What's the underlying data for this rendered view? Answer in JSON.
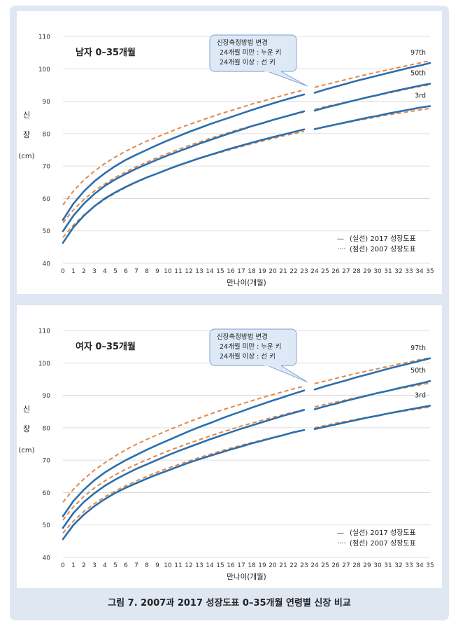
{
  "figure": {
    "caption": "그림 7. 2007과 2017 성장도표 0–35개월 연령별 신장 비교"
  },
  "chart_data": [
    {
      "type": "line",
      "title": "남자 0–35개월",
      "xlabel": "만나이(개월)",
      "ylabel_chars": [
        "신",
        "장"
      ],
      "ylabel_unit": "(cm)",
      "xlim": [
        0,
        35
      ],
      "ylim": [
        40,
        110
      ],
      "yticks": [
        40,
        50,
        60,
        70,
        80,
        90,
        100,
        110
      ],
      "x": [
        0,
        1,
        2,
        3,
        4,
        5,
        6,
        7,
        8,
        9,
        10,
        11,
        12,
        13,
        14,
        15,
        16,
        17,
        18,
        19,
        20,
        21,
        22,
        23,
        24,
        25,
        26,
        27,
        28,
        29,
        30,
        31,
        32,
        33,
        34,
        35
      ],
      "gap_between": [
        23,
        24
      ],
      "callout": [
        "신장측정방법 변경",
        "24개월 미만 : 누운 키",
        "24개월 이상 : 선 키"
      ],
      "percentile_labels": [
        "97th",
        "50th",
        "3rd"
      ],
      "legend": [
        {
          "symbol": "—",
          "text": "(실선) 2017 성장도표"
        },
        {
          "symbol": "····",
          "text": "(점선) 2007 성장도표"
        }
      ],
      "series": [
        {
          "name": "97th",
          "year": "2017",
          "style": "solid",
          "color": "#2a6fae",
          "values": [
            53.4,
            58.4,
            62.2,
            65.3,
            67.8,
            70.0,
            71.9,
            73.5,
            75.0,
            76.5,
            77.9,
            79.2,
            80.5,
            81.7,
            82.9,
            84.0,
            85.1,
            86.2,
            87.3,
            88.3,
            89.3,
            90.3,
            91.2,
            92.1,
            92.6,
            93.6,
            94.5,
            95.4,
            96.3,
            97.1,
            97.9,
            98.7,
            99.5,
            100.3,
            101.0,
            101.8
          ]
        },
        {
          "name": "50th",
          "year": "2017",
          "style": "solid",
          "color": "#2a6fae",
          "values": [
            49.9,
            54.7,
            58.4,
            61.4,
            63.9,
            65.9,
            67.6,
            69.2,
            70.6,
            72.0,
            73.3,
            74.5,
            75.7,
            76.9,
            78.0,
            79.1,
            80.2,
            81.2,
            82.3,
            83.2,
            84.2,
            85.1,
            86.0,
            86.9,
            87.1,
            88.0,
            88.8,
            89.6,
            90.4,
            91.2,
            91.9,
            92.7,
            93.4,
            94.1,
            94.8,
            95.4
          ]
        },
        {
          "name": "3rd",
          "year": "2017",
          "style": "solid",
          "color": "#2a6fae",
          "values": [
            46.3,
            51.1,
            54.7,
            57.6,
            60.0,
            61.9,
            63.6,
            65.1,
            66.5,
            67.7,
            69.0,
            70.2,
            71.3,
            72.4,
            73.4,
            74.4,
            75.4,
            76.3,
            77.2,
            78.1,
            78.9,
            79.7,
            80.5,
            81.3,
            81.4,
            82.1,
            82.8,
            83.5,
            84.2,
            84.9,
            85.5,
            86.2,
            86.8,
            87.4,
            88.0,
            88.5
          ]
        },
        {
          "name": "97th",
          "year": "2007",
          "style": "dashed",
          "color": "#e0894a",
          "values": [
            58.0,
            62.3,
            65.7,
            68.4,
            70.8,
            72.8,
            74.6,
            76.2,
            77.7,
            79.0,
            80.3,
            81.6,
            82.8,
            83.9,
            85.0,
            86.1,
            87.1,
            88.1,
            89.1,
            90.0,
            90.9,
            91.8,
            92.7,
            93.5,
            94.3,
            95.1,
            95.9,
            96.7,
            97.5,
            98.3,
            99.0,
            99.7,
            100.4,
            101.1,
            101.8,
            102.5
          ]
        },
        {
          "name": "50th",
          "year": "2007",
          "style": "dashed",
          "color": "#e0894a",
          "values": [
            52.5,
            56.5,
            59.7,
            62.3,
            64.5,
            66.5,
            68.2,
            69.8,
            71.2,
            72.6,
            73.9,
            75.1,
            76.3,
            77.4,
            78.5,
            79.5,
            80.5,
            81.5,
            82.4,
            83.3,
            84.2,
            85.1,
            85.9,
            86.7,
            87.5,
            88.3,
            89.0,
            89.7,
            90.4,
            91.1,
            91.8,
            92.5,
            93.2,
            93.9,
            94.5,
            95.1
          ]
        },
        {
          "name": "3rd",
          "year": "2007",
          "style": "dashed",
          "color": "#e0894a",
          "values": [
            48.0,
            51.8,
            54.9,
            57.5,
            59.7,
            61.7,
            63.4,
            65.0,
            66.4,
            67.7,
            68.9,
            70.1,
            71.2,
            72.3,
            73.3,
            74.2,
            75.1,
            76.0,
            76.9,
            77.7,
            78.5,
            79.3,
            80.0,
            80.7,
            81.4,
            82.1,
            82.8,
            83.4,
            84.0,
            84.6,
            85.2,
            85.8,
            86.3,
            86.8,
            87.3,
            87.8
          ]
        }
      ]
    },
    {
      "type": "line",
      "title": "여자 0–35개월",
      "xlabel": "만나이(개월)",
      "ylabel_chars": [
        "신",
        "장"
      ],
      "ylabel_unit": "(cm)",
      "xlim": [
        0,
        35
      ],
      "ylim": [
        40,
        110
      ],
      "yticks": [
        40,
        50,
        60,
        70,
        80,
        90,
        100,
        110
      ],
      "x": [
        0,
        1,
        2,
        3,
        4,
        5,
        6,
        7,
        8,
        9,
        10,
        11,
        12,
        13,
        14,
        15,
        16,
        17,
        18,
        19,
        20,
        21,
        22,
        23,
        24,
        25,
        26,
        27,
        28,
        29,
        30,
        31,
        32,
        33,
        34,
        35
      ],
      "gap_between": [
        23,
        24
      ],
      "callout": [
        "신장측정방법 변경",
        "24개월 미만 : 누운 키",
        "24개월 이상 : 선 키"
      ],
      "percentile_labels": [
        "97th",
        "50th",
        "3rd"
      ],
      "legend": [
        {
          "symbol": "—",
          "text": "(실선) 2017 성장도표"
        },
        {
          "symbol": "····",
          "text": "(점선) 2007 성장도표"
        }
      ],
      "series": [
        {
          "name": "97th",
          "year": "2017",
          "style": "solid",
          "color": "#2a6fae",
          "values": [
            52.7,
            57.4,
            60.9,
            63.8,
            66.2,
            68.2,
            70.0,
            71.6,
            73.2,
            74.7,
            76.1,
            77.5,
            78.9,
            80.2,
            81.4,
            82.7,
            83.9,
            85.0,
            86.2,
            87.3,
            88.4,
            89.4,
            90.5,
            91.5,
            91.8,
            92.8,
            93.7,
            94.6,
            95.6,
            96.4,
            97.3,
            98.2,
            99.0,
            99.8,
            100.6,
            101.4
          ]
        },
        {
          "name": "50th",
          "year": "2017",
          "style": "solid",
          "color": "#2a6fae",
          "values": [
            49.1,
            53.7,
            57.1,
            59.8,
            62.1,
            64.0,
            65.7,
            67.3,
            68.7,
            70.1,
            71.5,
            72.8,
            74.0,
            75.2,
            76.4,
            77.5,
            78.6,
            79.7,
            80.7,
            81.7,
            82.7,
            83.7,
            84.6,
            85.5,
            85.7,
            86.6,
            87.4,
            88.3,
            89.1,
            89.9,
            90.7,
            91.4,
            92.2,
            92.9,
            93.6,
            94.4
          ]
        },
        {
          "name": "3rd",
          "year": "2017",
          "style": "solid",
          "color": "#2a6fae",
          "values": [
            45.6,
            50.0,
            53.2,
            55.8,
            58.0,
            59.9,
            61.5,
            62.9,
            64.3,
            65.6,
            66.8,
            68.0,
            69.2,
            70.3,
            71.3,
            72.3,
            73.3,
            74.2,
            75.2,
            76.0,
            76.9,
            77.7,
            78.6,
            79.3,
            79.6,
            80.3,
            81.0,
            81.7,
            82.4,
            83.1,
            83.7,
            84.4,
            85.0,
            85.6,
            86.2,
            86.8
          ]
        },
        {
          "name": "97th",
          "year": "2007",
          "style": "dashed",
          "color": "#e0894a",
          "values": [
            57.0,
            61.0,
            64.2,
            66.9,
            69.2,
            71.3,
            73.2,
            74.9,
            76.4,
            77.8,
            79.2,
            80.5,
            81.8,
            83.0,
            84.2,
            85.3,
            86.3,
            87.3,
            88.3,
            89.3,
            90.2,
            91.1,
            92.0,
            92.8,
            93.6,
            94.4,
            95.2,
            96.0,
            96.8,
            97.5,
            98.2,
            98.9,
            99.6,
            100.3,
            101.0,
            101.6
          ]
        },
        {
          "name": "50th",
          "year": "2007",
          "style": "dashed",
          "color": "#e0894a",
          "values": [
            51.5,
            55.6,
            58.8,
            61.4,
            63.6,
            65.5,
            67.2,
            68.7,
            70.1,
            71.5,
            72.8,
            74.0,
            75.2,
            76.3,
            77.4,
            78.5,
            79.5,
            80.5,
            81.4,
            82.3,
            83.2,
            84.0,
            84.8,
            85.6,
            86.4,
            87.2,
            87.9,
            88.6,
            89.3,
            90.0,
            90.7,
            91.4,
            92.0,
            92.6,
            93.2,
            93.8
          ]
        },
        {
          "name": "3rd",
          "year": "2007",
          "style": "dashed",
          "color": "#e0894a",
          "values": [
            47.5,
            51.2,
            54.2,
            56.6,
            58.7,
            60.5,
            62.1,
            63.6,
            65.0,
            66.3,
            67.5,
            68.6,
            69.7,
            70.8,
            71.8,
            72.8,
            73.7,
            74.6,
            75.4,
            76.2,
            77.0,
            77.8,
            78.5,
            79.3,
            80.0,
            80.7,
            81.4,
            82.0,
            82.6,
            83.2,
            83.8,
            84.4,
            84.9,
            85.4,
            85.9,
            86.4
          ]
        }
      ]
    }
  ]
}
